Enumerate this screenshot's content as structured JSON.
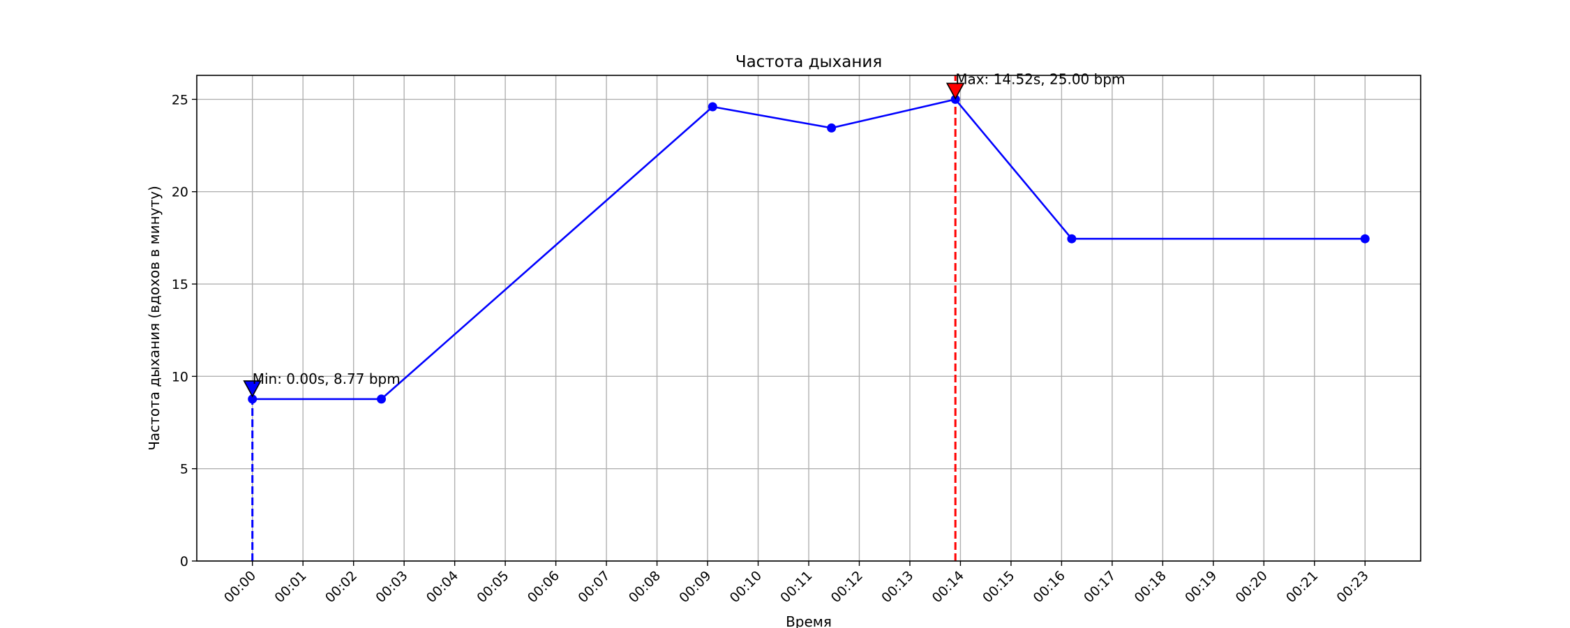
{
  "chart_data": {
    "type": "line",
    "title": "Частота дыхания",
    "xlabel": "Время",
    "ylabel": "Частота дыхания (вдохов в минуту)",
    "xlim": [
      -1.1,
      23.1
    ],
    "ylim": [
      0,
      26.3
    ],
    "x_ticks": [
      0,
      1,
      2,
      3,
      4,
      5,
      6,
      7,
      8,
      9,
      10,
      11,
      12,
      13,
      14,
      15,
      16,
      17,
      18,
      19,
      20,
      21,
      22
    ],
    "x_tick_labels": [
      "00:00",
      "00:01",
      "00:02",
      "00:03",
      "00:04",
      "00:05",
      "00:06",
      "00:07",
      "00:08",
      "00:09",
      "00:10",
      "00:11",
      "00:12",
      "00:13",
      "00:14",
      "00:15",
      "00:16",
      "00:17",
      "00:18",
      "00:19",
      "00:20",
      "00:21",
      "00:23"
    ],
    "y_ticks": [
      0,
      5,
      10,
      15,
      20,
      25
    ],
    "y_tick_labels": [
      "0",
      "5",
      "10",
      "15",
      "20",
      "25"
    ],
    "grid": true,
    "series": [
      {
        "color": "#0000ff",
        "x": [
          0,
          2.55,
          9.1,
          11.45,
          13.9,
          16.2,
          22
        ],
        "y": [
          8.77,
          8.77,
          24.6,
          23.45,
          25.0,
          17.45,
          17.45
        ]
      }
    ],
    "annotations": {
      "min": {
        "x": 0,
        "y": 8.77,
        "label": "Min: 0.00s, 8.77 bpm",
        "color": "#0000ff"
      },
      "max": {
        "x": 13.9,
        "y": 25.0,
        "label": "Max: 14.52s, 25.00 bpm",
        "color": "#ff0000"
      }
    }
  }
}
